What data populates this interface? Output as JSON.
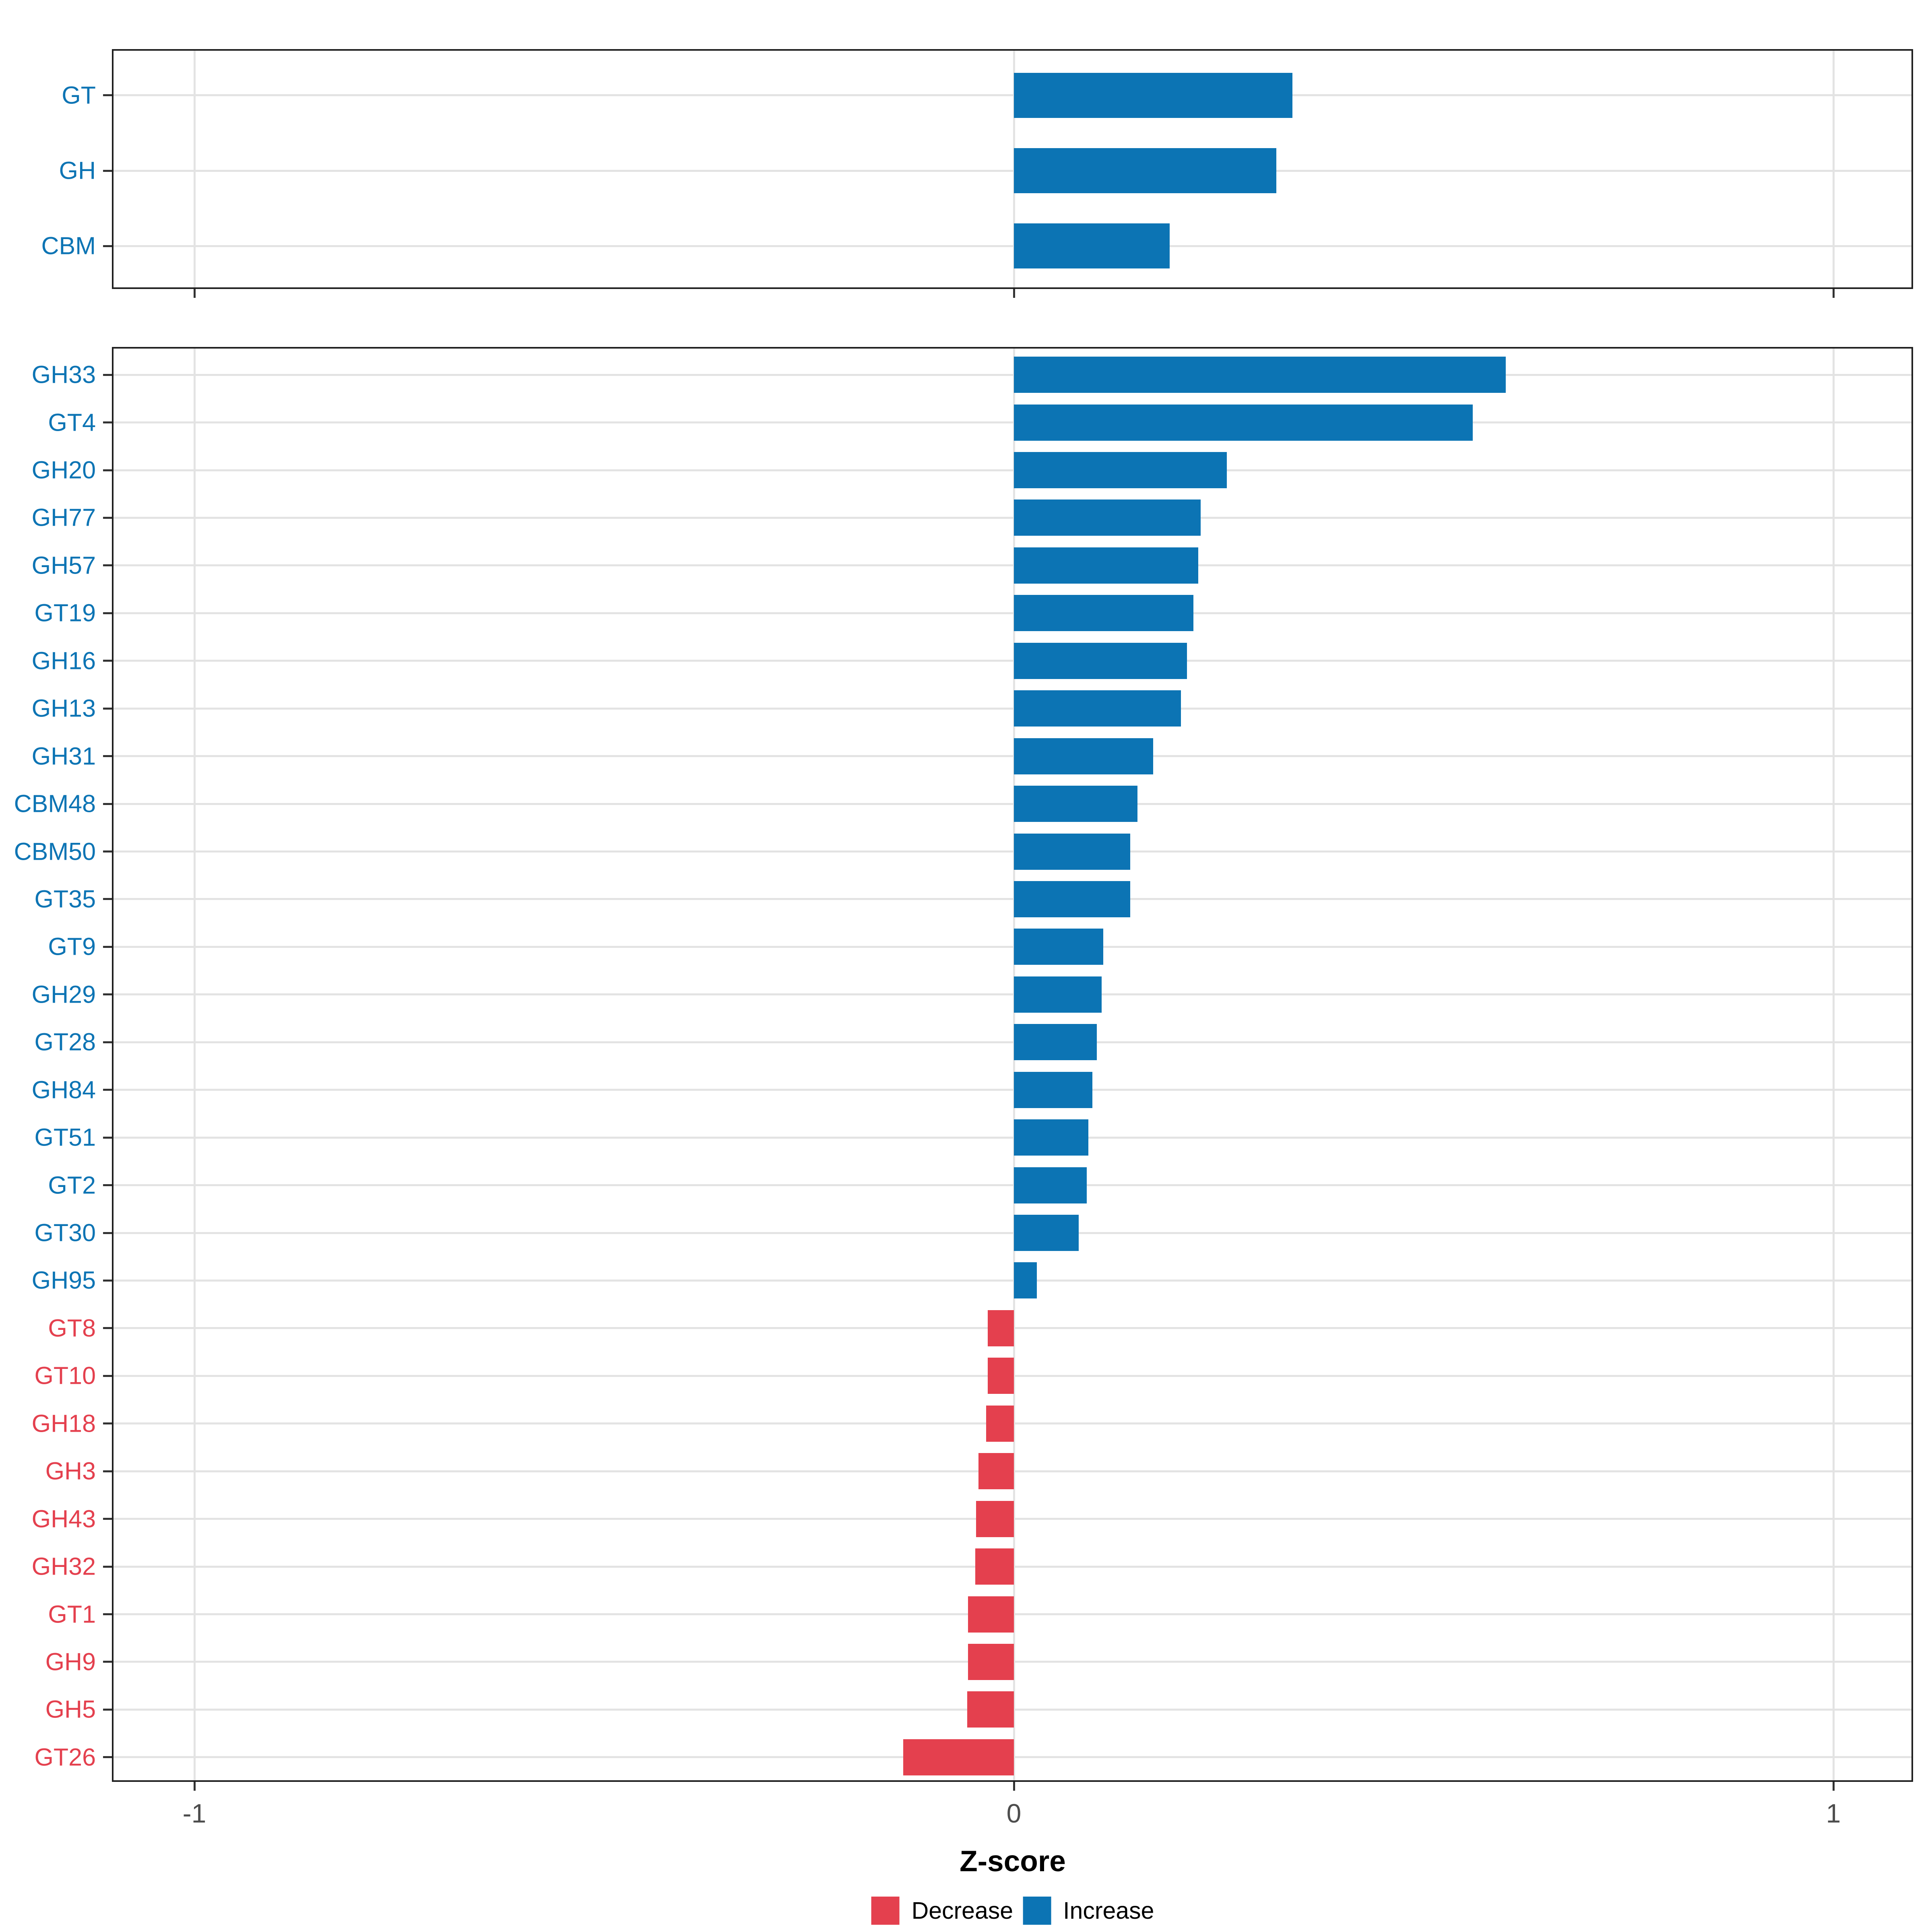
{
  "chart_data": {
    "type": "bar",
    "orientation": "horizontal",
    "title": "",
    "xlabel": "Z-score",
    "ylabel": "",
    "xlim": [
      -1.1,
      1.1
    ],
    "x_ticks": [
      -1,
      0,
      1
    ],
    "x_tick_labels": [
      "-1",
      "0",
      "1"
    ],
    "grid": "major-only",
    "colors": {
      "increase": "#0C74B4",
      "decrease": "#E4404E",
      "gridline": "#E3E3E3",
      "panel_border": "#1F1F1F",
      "tick_label": "#4D4D4D"
    },
    "legend": {
      "position": "bottom",
      "entries": [
        {
          "label": "Decrease",
          "color": "#E4404E"
        },
        {
          "label": "Increase",
          "color": "#0C74B4"
        }
      ]
    },
    "panels": [
      {
        "id": "category-summary",
        "categories": [
          "GT",
          "GH",
          "CBM"
        ],
        "values": [
          0.34,
          0.32,
          0.19
        ]
      },
      {
        "id": "family-detail",
        "categories": [
          "GH33",
          "GT4",
          "GH20",
          "GH77",
          "GH57",
          "GT19",
          "GH16",
          "GH13",
          "GH31",
          "CBM48",
          "CBM50",
          "GT35",
          "GT9",
          "GH29",
          "GT28",
          "GH84",
          "GT51",
          "GT2",
          "GT30",
          "GH95",
          "GT8",
          "GT10",
          "GH18",
          "GH3",
          "GH43",
          "GH32",
          "GT1",
          "GH9",
          "GH5",
          "GT26"
        ],
        "values": [
          0.6,
          0.56,
          0.26,
          0.228,
          0.225,
          0.219,
          0.211,
          0.204,
          0.17,
          0.151,
          0.142,
          0.142,
          0.109,
          0.107,
          0.101,
          0.096,
          0.091,
          0.089,
          0.079,
          0.028,
          -0.032,
          -0.032,
          -0.034,
          -0.043,
          -0.046,
          -0.047,
          -0.056,
          -0.056,
          -0.057,
          -0.135
        ]
      }
    ]
  }
}
